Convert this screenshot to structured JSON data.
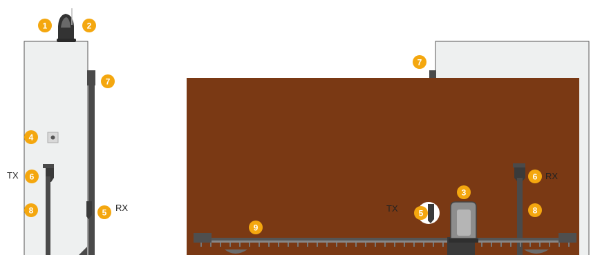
{
  "colors": {
    "gate": "#7a3914",
    "wall": "#eef0f0",
    "wall_edge": "#555555",
    "post": "#4a4a4a",
    "badge": "#f4a70f",
    "rack": "#555555"
  },
  "badges": [
    {
      "id": "b1",
      "num": "1",
      "name": "flashing-light"
    },
    {
      "id": "b2",
      "num": "2",
      "name": "antenna"
    },
    {
      "id": "b3",
      "num": "3",
      "name": "gear-motor"
    },
    {
      "id": "b4",
      "num": "4",
      "name": "key-selector"
    },
    {
      "id": "b5a",
      "num": "5",
      "name": "photocell-rx-side"
    },
    {
      "id": "b5b",
      "num": "5",
      "name": "photocell-tx-front"
    },
    {
      "id": "b6a",
      "num": "6",
      "name": "photocell-post-tx-side"
    },
    {
      "id": "b6b",
      "num": "6",
      "name": "photocell-post-rx-front"
    },
    {
      "id": "b7a",
      "num": "7",
      "name": "gate-stop-side"
    },
    {
      "id": "b7b",
      "num": "7",
      "name": "gate-stop-front"
    },
    {
      "id": "b8a",
      "num": "8",
      "name": "post-side"
    },
    {
      "id": "b8b",
      "num": "8",
      "name": "post-front"
    },
    {
      "id": "b9",
      "num": "9",
      "name": "rack"
    }
  ],
  "labels": {
    "tx_left": "TX",
    "rx_left": "RX",
    "tx_front": "TX",
    "rx_right": "RX"
  }
}
